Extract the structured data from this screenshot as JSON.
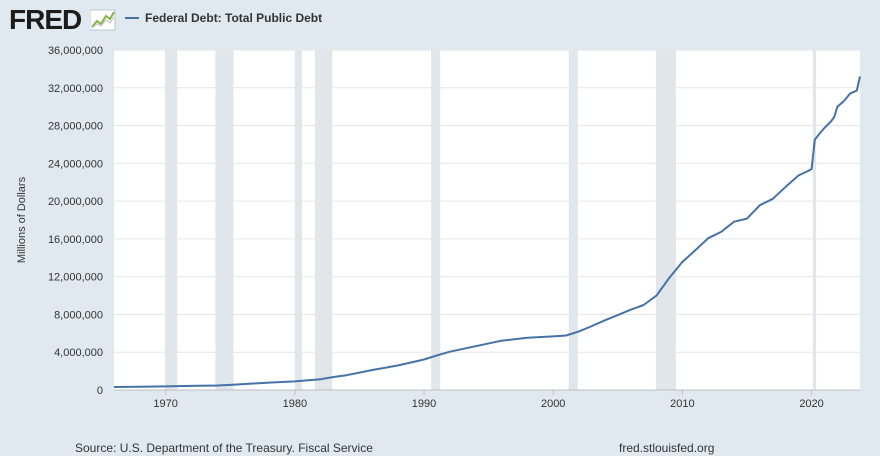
{
  "header": {
    "logo_text": "FRED",
    "legend_label": "Federal Debt: Total Public Debt"
  },
  "footer": {
    "source": "Source: U.S. Department of the Treasury. Fiscal Service",
    "site": "fred.stlouisfed.org"
  },
  "chart_data": {
    "type": "line",
    "ylabel": "Millions of Dollars",
    "ylim": [
      0,
      36000000
    ],
    "yticks": [
      0,
      4000000,
      8000000,
      12000000,
      16000000,
      20000000,
      24000000,
      28000000,
      32000000,
      36000000
    ],
    "ytick_labels": [
      "0",
      "4,000,000",
      "8,000,000",
      "12,000,000",
      "16,000,000",
      "20,000,000",
      "24,000,000",
      "28,000,000",
      "32,000,000",
      "36,000,000"
    ],
    "xlim": [
      1966.0,
      2023.75
    ],
    "xticks": [
      1970,
      1980,
      1990,
      2000,
      2010,
      2020
    ],
    "xtick_labels": [
      "1970",
      "1980",
      "1990",
      "2000",
      "2010",
      "2020"
    ],
    "grid": "horizontal",
    "recession_color": "#e1e6ea",
    "recessions": [
      [
        1969.95,
        1970.9
      ],
      [
        1973.85,
        1975.25
      ],
      [
        1980.0,
        1980.55
      ],
      [
        1981.55,
        1982.9
      ],
      [
        1990.55,
        1991.25
      ],
      [
        2001.2,
        2001.9
      ],
      [
        2007.95,
        2009.5
      ],
      [
        2020.1,
        2020.35
      ]
    ],
    "series": [
      {
        "name": "Federal Debt: Total Public Debt",
        "color": "#4572a7",
        "x": [
          1966,
          1968,
          1970,
          1972,
          1974,
          1975,
          1976,
          1978,
          1980,
          1982,
          1983,
          1984,
          1986,
          1988,
          1990,
          1991,
          1992,
          1994,
          1996,
          1998,
          2000,
          2001,
          2002,
          2003,
          2004,
          2005,
          2006,
          2007,
          2008,
          2009,
          2010,
          2011,
          2012,
          2013,
          2014,
          2015,
          2016,
          2017,
          2018,
          2019,
          2019.75,
          2020.0,
          2020.25,
          2020.5,
          2021.0,
          2021.5,
          2021.75,
          2022.0,
          2022.5,
          2023.0,
          2023.5,
          2023.75
        ],
        "values": [
          320000,
          347000,
          380000,
          430000,
          480000,
          540000,
          630000,
          780000,
          910000,
          1140000,
          1380000,
          1570000,
          2120000,
          2600000,
          3230000,
          3660000,
          4060000,
          4640000,
          5220000,
          5530000,
          5680000,
          5770000,
          6200000,
          6780000,
          7380000,
          7930000,
          8500000,
          9000000,
          10000000,
          11900000,
          13560000,
          14790000,
          16070000,
          16740000,
          17820000,
          18150000,
          19570000,
          20240000,
          21520000,
          22720000,
          23200000,
          23400000,
          26500000,
          26950000,
          27750000,
          28430000,
          28900000,
          30000000,
          30600000,
          31400000,
          31700000,
          33200000
        ]
      }
    ]
  }
}
